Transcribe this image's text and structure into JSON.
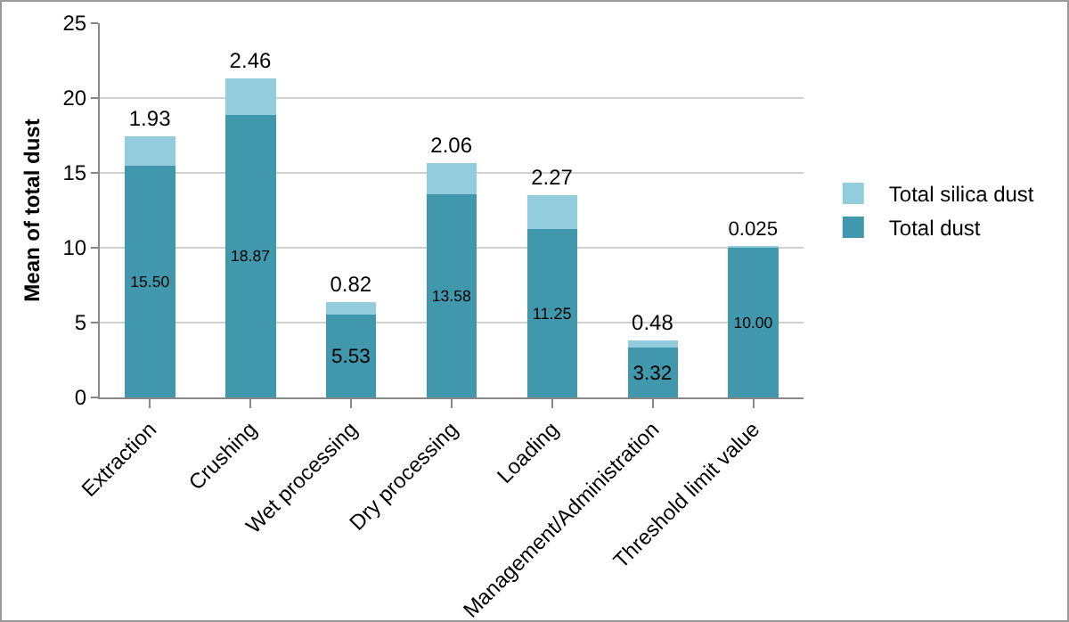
{
  "chart_data": {
    "type": "bar",
    "stacked": true,
    "ylabel": "Mean of total dust",
    "categories": [
      "Extraction",
      "Crushing",
      "Wet processing",
      "Dry processing",
      "Loading",
      "Management/Administration",
      "Threshold limit value"
    ],
    "series": [
      {
        "name": "Total dust",
        "color": "#4198ad",
        "values": [
          15.5,
          18.87,
          5.53,
          13.58,
          11.25,
          3.32,
          10.0
        ],
        "value_labels": [
          "15.50",
          "18.87",
          "5.53",
          "13.58",
          "11.25",
          "3.32",
          "10.00"
        ]
      },
      {
        "name": "Total silica dust",
        "color": "#93cddd",
        "values": [
          1.93,
          2.46,
          0.82,
          2.06,
          2.27,
          0.48,
          0.025
        ],
        "value_labels": [
          "1.93",
          "2.46",
          "0.82",
          "2.06",
          "2.27",
          "0.48",
          "0.025"
        ]
      }
    ],
    "ylim": [
      0,
      25
    ],
    "yticks": [
      0,
      5,
      10,
      15,
      20,
      25
    ],
    "grid": "y",
    "legend": "right"
  }
}
